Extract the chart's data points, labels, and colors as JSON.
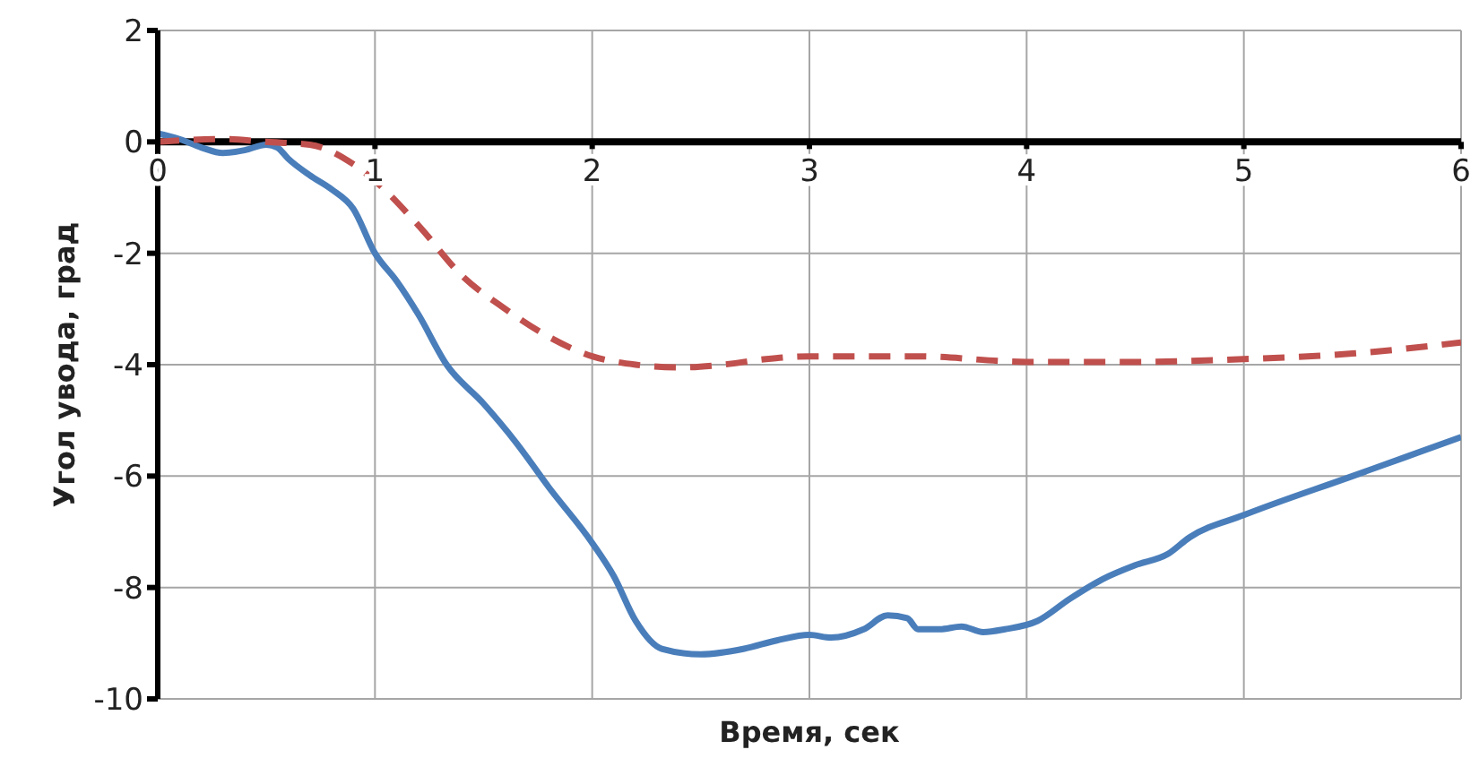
{
  "chart_data": {
    "type": "line",
    "xlabel": "Время, сек",
    "ylabel": "Угол увода, град",
    "xlim": [
      0,
      6
    ],
    "xticks": [
      0,
      1,
      2,
      3,
      4,
      5,
      6
    ],
    "ylim": [
      -10,
      2
    ],
    "yticks": [
      -10,
      -8,
      -6,
      -4,
      -2,
      0,
      2
    ],
    "grid": true,
    "marker": "none",
    "series": [
      {
        "color": "#4a7ebb",
        "line_style": "solid",
        "x": [
          0,
          0.1,
          0.2,
          0.3,
          0.4,
          0.5,
          0.55,
          0.6,
          0.7,
          0.8,
          0.9,
          1.0,
          1.1,
          1.2,
          1.33,
          1.5,
          1.65,
          1.8,
          2.0,
          2.1,
          2.2,
          2.32,
          2.5,
          2.7,
          2.85,
          3.0,
          3.1,
          3.25,
          3.36,
          3.45,
          3.5,
          3.6,
          3.7,
          3.8,
          3.9,
          4.05,
          4.2,
          4.35,
          4.5,
          4.65,
          4.75,
          5.0,
          5.5,
          6.0
        ],
        "values": [
          0.15,
          0.05,
          -0.1,
          -0.2,
          -0.15,
          -0.05,
          -0.1,
          -0.3,
          -0.6,
          -0.85,
          -1.2,
          -2.0,
          -2.5,
          -3.1,
          -4.0,
          -4.7,
          -5.4,
          -6.2,
          -7.2,
          -7.8,
          -8.6,
          -9.1,
          -9.2,
          -9.1,
          -8.95,
          -8.85,
          -8.9,
          -8.75,
          -8.5,
          -8.55,
          -8.75,
          -8.75,
          -8.7,
          -8.8,
          -8.75,
          -8.6,
          -8.2,
          -7.85,
          -7.6,
          -7.4,
          -7.1,
          -6.7,
          -6.0,
          -5.3
        ]
      },
      {
        "color": "#c0504d",
        "line_style": "dashed",
        "x": [
          0,
          0.3,
          0.5,
          0.7,
          0.9,
          1.0,
          1.2,
          1.4,
          1.6,
          1.8,
          2.0,
          2.2,
          2.4,
          2.6,
          2.8,
          3.0,
          3.5,
          4.0,
          4.5,
          5.0,
          5.5,
          6.0
        ],
        "values": [
          0,
          0.05,
          0,
          -0.05,
          -0.4,
          -0.7,
          -1.5,
          -2.4,
          -3.0,
          -3.5,
          -3.85,
          -4.0,
          -4.05,
          -4.0,
          -3.9,
          -3.85,
          -3.85,
          -3.95,
          -3.95,
          -3.9,
          -3.8,
          -3.6
        ]
      }
    ]
  }
}
